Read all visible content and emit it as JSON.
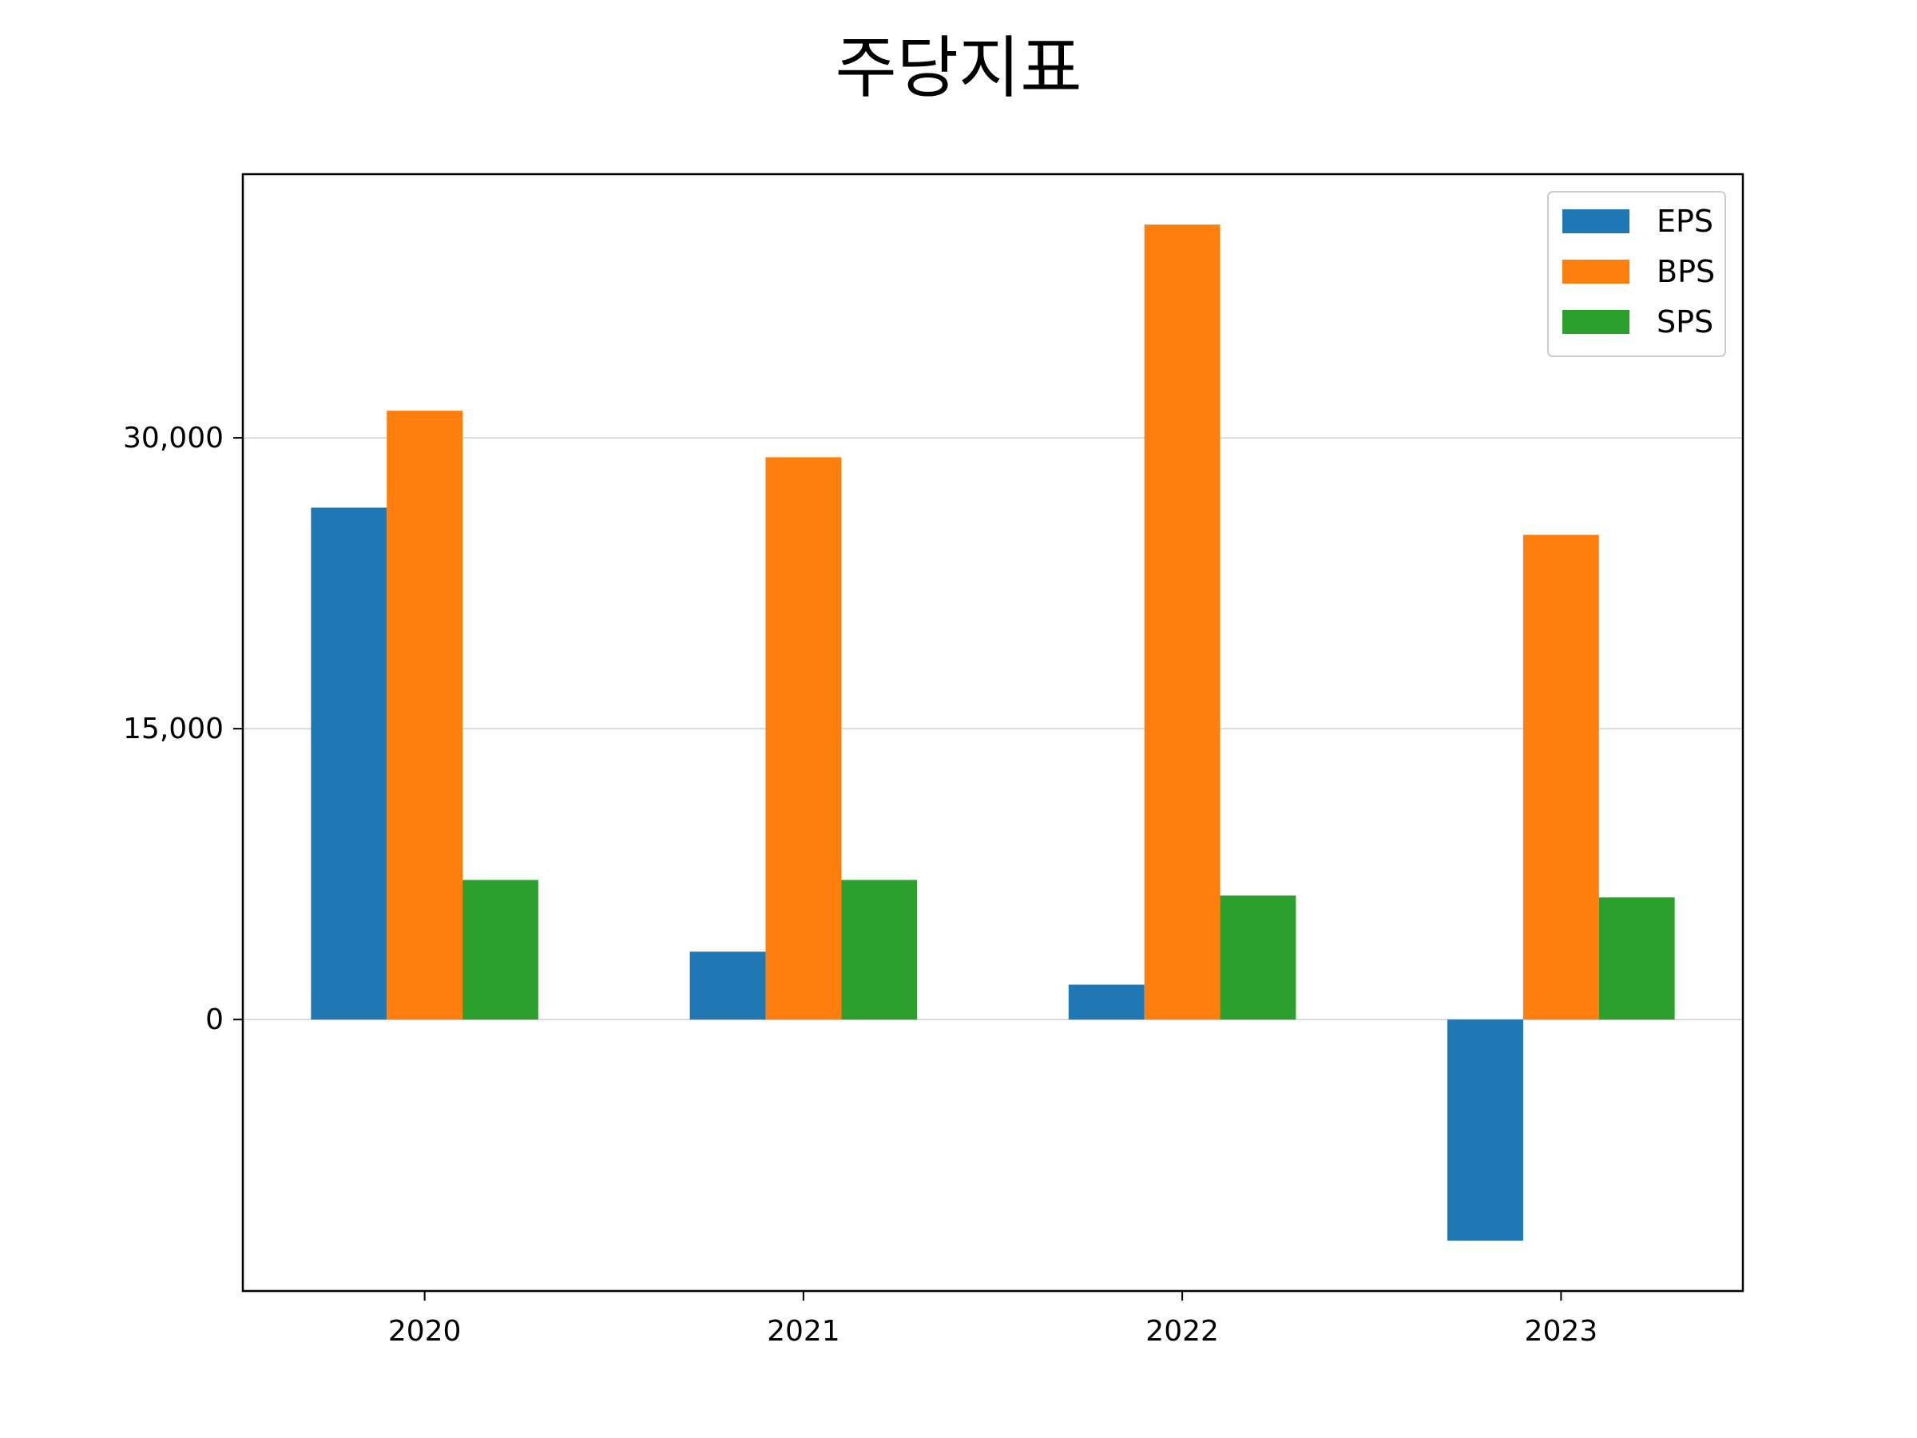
{
  "chart_data": {
    "type": "bar",
    "title": "주당지표",
    "xlabel": "",
    "ylabel": "",
    "categories": [
      "2020",
      "2021",
      "2022",
      "2023"
    ],
    "series": [
      {
        "name": "EPS",
        "color": "#1f77b4",
        "values": [
          26400,
          3500,
          1800,
          -11400
        ]
      },
      {
        "name": "BPS",
        "color": "#ff7f0e",
        "values": [
          31400,
          29000,
          41000,
          25000
        ]
      },
      {
        "name": "SPS",
        "color": "#2ca02c",
        "values": [
          7200,
          7200,
          6400,
          6300
        ]
      }
    ],
    "ylim": [
      -14000,
      43600
    ],
    "yticks": [
      0,
      15000,
      30000
    ],
    "ytick_labels": [
      "0",
      "15,000",
      "30,000"
    ],
    "grid": "y",
    "legend": "top-right"
  }
}
